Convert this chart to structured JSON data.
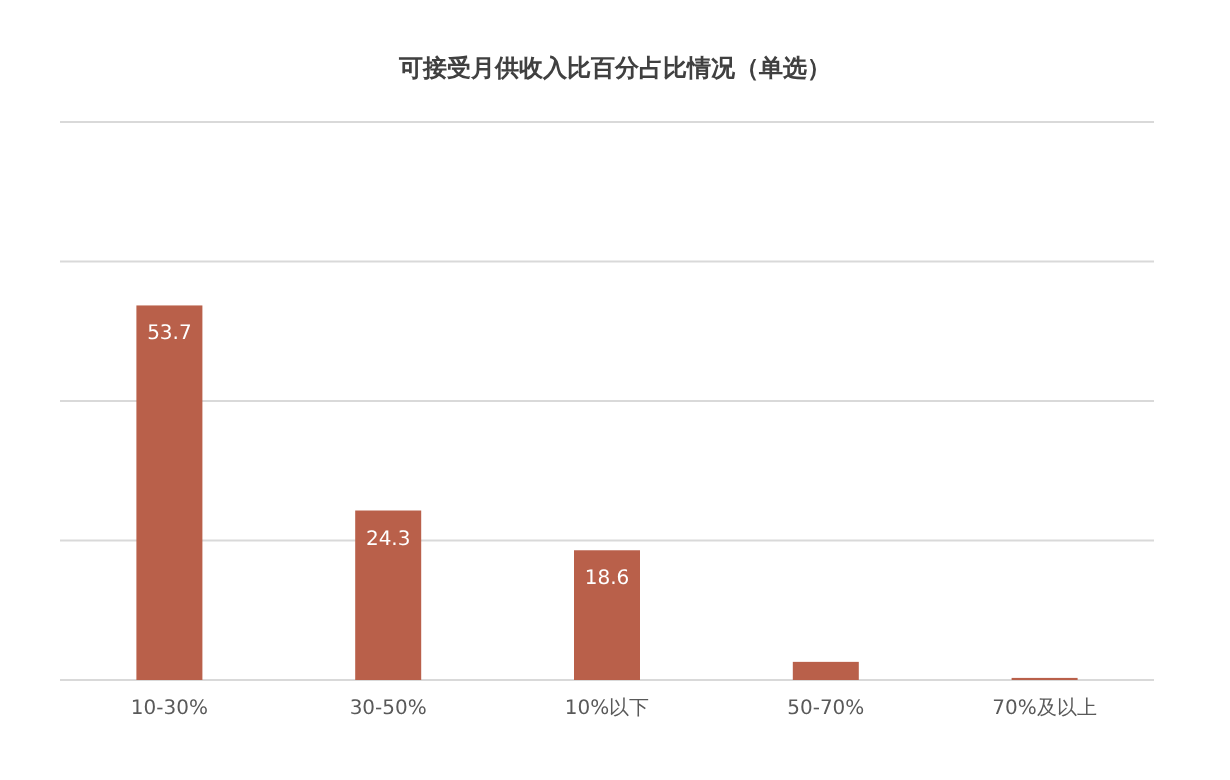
{
  "chart_data": {
    "type": "bar",
    "title": "可接受月供收入比百分占比情况（单选）",
    "categories": [
      "10-30%",
      "30-50%",
      "10%以下",
      "50-70%",
      "70%及以上"
    ],
    "values": [
      53.7,
      24.3,
      18.6,
      2.6,
      0.3
    ],
    "value_labels": [
      "53.7",
      "24.3",
      "18.6",
      null,
      null
    ],
    "color": "#b9604a",
    "ylim": [
      0,
      80
    ],
    "yticks": [
      {
        "value": 0,
        "label": null
      },
      {
        "value": 20,
        "label": null
      },
      {
        "value": 40,
        "label": null
      },
      {
        "value": 60,
        "label": null
      },
      {
        "value": 80,
        "label": null
      }
    ],
    "grid": "y",
    "tick_labels": "x"
  }
}
